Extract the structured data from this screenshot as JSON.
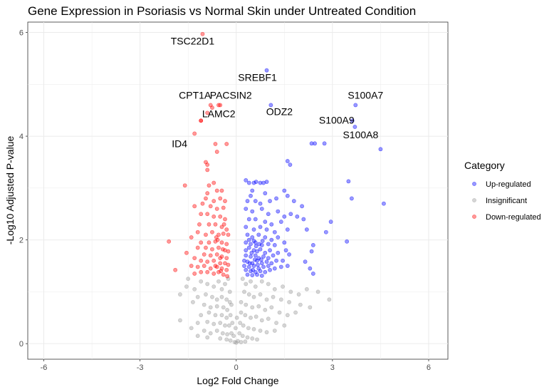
{
  "chart_data": {
    "type": "scatter",
    "title": "Gene Expression in Psoriasis vs Normal Skin under Untreated Condition",
    "xlabel": "Log2 Fold Change",
    "ylabel": "-Log10 Adjusted P-value",
    "xlim": [
      -6.5,
      6.6
    ],
    "ylim": [
      -0.3,
      6.2
    ],
    "x_ticks": [
      -6,
      -3,
      0,
      3,
      6
    ],
    "y_ticks": [
      0,
      2,
      4,
      6
    ],
    "grid": true,
    "legend": {
      "title": "Category",
      "placement": "right",
      "entries": [
        {
          "label": "Up-regulated",
          "color": "#0000ff"
        },
        {
          "label": "Insignificant",
          "color": "#999999"
        },
        {
          "label": "Down-regulated",
          "color": "#ff0000"
        }
      ]
    },
    "labeled_points": [
      {
        "gene": "TSC22D1",
        "x": -1.05,
        "y": 5.97,
        "category": "Down-regulated"
      },
      {
        "gene": "SREBF1",
        "x": 0.95,
        "y": 5.27,
        "category": "Up-regulated"
      },
      {
        "gene": "CPT1A",
        "x": -0.8,
        "y": 4.6,
        "category": "Down-regulated"
      },
      {
        "gene": "PACSIN2",
        "x": -0.5,
        "y": 4.6,
        "category": "Down-regulated"
      },
      {
        "gene": "LAMC2",
        "x": -1.1,
        "y": 4.3,
        "category": "Down-regulated"
      },
      {
        "gene": "ODZ2",
        "x": 1.08,
        "y": 4.6,
        "category": "Up-regulated"
      },
      {
        "gene": "S100A7",
        "x": 3.72,
        "y": 4.6,
        "category": "Up-regulated"
      },
      {
        "gene": "S100A9",
        "x": 3.62,
        "y": 4.3,
        "category": "Up-regulated"
      },
      {
        "gene": "S100A8",
        "x": 3.7,
        "y": 4.18,
        "category": "Up-regulated"
      },
      {
        "gene": "ID4",
        "x": -1.3,
        "y": 4.05,
        "category": "Down-regulated"
      }
    ],
    "up_regulated_points": [
      [
        2.35,
        3.86
      ],
      [
        2.45,
        3.86
      ],
      [
        2.75,
        3.86
      ],
      [
        4.5,
        3.75
      ],
      [
        1.6,
        3.52
      ],
      [
        1.68,
        3.45
      ],
      [
        0.3,
        3.15
      ],
      [
        0.4,
        3.1
      ],
      [
        0.55,
        3.1
      ],
      [
        0.62,
        3.12
      ],
      [
        0.75,
        3.1
      ],
      [
        0.85,
        3.1
      ],
      [
        0.95,
        3.12
      ],
      [
        3.5,
        3.13
      ],
      [
        0.5,
        2.95
      ],
      [
        0.9,
        2.9
      ],
      [
        1.5,
        2.95
      ],
      [
        1.6,
        2.85
      ],
      [
        0.45,
        2.85
      ],
      [
        0.35,
        2.75
      ],
      [
        0.6,
        2.75
      ],
      [
        0.75,
        2.7
      ],
      [
        1.05,
        2.75
      ],
      [
        1.25,
        2.8
      ],
      [
        1.8,
        2.75
      ],
      [
        3.6,
        2.8
      ],
      [
        4.6,
        2.7
      ],
      [
        2.05,
        2.65
      ],
      [
        0.3,
        2.6
      ],
      [
        0.5,
        2.55
      ],
      [
        0.8,
        2.6
      ],
      [
        1.0,
        2.5
      ],
      [
        1.3,
        2.55
      ],
      [
        1.5,
        2.45
      ],
      [
        1.7,
        2.5
      ],
      [
        1.9,
        2.45
      ],
      [
        0.4,
        2.4
      ],
      [
        0.6,
        2.4
      ],
      [
        0.9,
        2.35
      ],
      [
        1.1,
        2.3
      ],
      [
        1.4,
        2.35
      ],
      [
        2.1,
        2.4
      ],
      [
        2.95,
        2.35
      ],
      [
        0.3,
        2.25
      ],
      [
        0.55,
        2.2
      ],
      [
        0.75,
        2.25
      ],
      [
        0.95,
        2.2
      ],
      [
        1.2,
        2.15
      ],
      [
        1.6,
        2.2
      ],
      [
        2.2,
        2.2
      ],
      [
        2.8,
        2.15
      ],
      [
        0.35,
        2.1
      ],
      [
        0.5,
        2.05
      ],
      [
        0.7,
        2.1
      ],
      [
        0.9,
        2.05
      ],
      [
        1.1,
        2.0
      ],
      [
        1.3,
        2.05
      ],
      [
        0.3,
        1.95
      ],
      [
        0.45,
        1.92
      ],
      [
        0.6,
        1.95
      ],
      [
        0.8,
        1.9
      ],
      [
        1.0,
        1.92
      ],
      [
        1.2,
        1.9
      ],
      [
        1.5,
        1.95
      ],
      [
        3.45,
        1.97
      ],
      [
        2.4,
        1.9
      ],
      [
        0.3,
        1.8
      ],
      [
        0.4,
        1.85
      ],
      [
        0.55,
        1.8
      ],
      [
        0.65,
        1.78
      ],
      [
        0.75,
        1.82
      ],
      [
        0.9,
        1.75
      ],
      [
        1.05,
        1.8
      ],
      [
        1.3,
        1.75
      ],
      [
        1.55,
        1.8
      ],
      [
        1.65,
        1.72
      ],
      [
        2.35,
        1.78
      ],
      [
        0.3,
        1.7
      ],
      [
        0.45,
        1.68
      ],
      [
        0.6,
        1.7
      ],
      [
        0.7,
        1.65
      ],
      [
        0.85,
        1.68
      ],
      [
        1.0,
        1.65
      ],
      [
        1.15,
        1.7
      ],
      [
        1.45,
        1.6
      ],
      [
        0.25,
        1.6
      ],
      [
        0.35,
        1.58
      ],
      [
        0.5,
        1.55
      ],
      [
        0.65,
        1.6
      ],
      [
        0.8,
        1.55
      ],
      [
        0.95,
        1.58
      ],
      [
        1.1,
        1.55
      ],
      [
        1.25,
        1.6
      ],
      [
        2.15,
        1.58
      ],
      [
        0.25,
        1.5
      ],
      [
        0.4,
        1.48
      ],
      [
        0.55,
        1.5
      ],
      [
        0.7,
        1.45
      ],
      [
        0.85,
        1.48
      ],
      [
        1.0,
        1.5
      ],
      [
        1.2,
        1.45
      ],
      [
        1.4,
        1.48
      ],
      [
        1.6,
        1.5
      ],
      [
        2.3,
        1.45
      ],
      [
        0.3,
        1.42
      ],
      [
        0.45,
        1.4
      ],
      [
        0.6,
        1.38
      ],
      [
        0.75,
        1.4
      ],
      [
        0.9,
        1.38
      ],
      [
        1.05,
        1.42
      ],
      [
        0.35,
        1.33
      ],
      [
        0.5,
        1.32
      ],
      [
        0.65,
        1.33
      ],
      [
        0.8,
        1.31
      ],
      [
        2.4,
        1.35
      ],
      [
        0.4,
        2.0
      ],
      [
        0.55,
        1.98
      ],
      [
        0.62,
        1.88
      ],
      [
        0.72,
        1.92
      ],
      [
        0.82,
        1.98
      ],
      [
        0.48,
        1.75
      ],
      [
        0.58,
        1.62
      ],
      [
        0.52,
        1.42
      ],
      [
        0.42,
        1.55
      ],
      [
        0.67,
        1.52
      ],
      [
        0.78,
        1.62
      ]
    ],
    "down_regulated_points": [
      [
        -0.75,
        4.55
      ],
      [
        -0.55,
        4.6
      ],
      [
        -0.9,
        4.45
      ],
      [
        -1.1,
        4.3
      ],
      [
        -0.65,
        3.85
      ],
      [
        -0.3,
        3.85
      ],
      [
        -0.6,
        3.7
      ],
      [
        -0.9,
        3.45
      ],
      [
        -0.95,
        3.5
      ],
      [
        -0.9,
        3.35
      ],
      [
        -1.6,
        3.05
      ],
      [
        -0.7,
        3.1
      ],
      [
        -0.85,
        3.05
      ],
      [
        -0.6,
        2.95
      ],
      [
        -0.9,
        2.9
      ],
      [
        -0.45,
        2.95
      ],
      [
        -0.95,
        2.8
      ],
      [
        -0.7,
        2.75
      ],
      [
        -0.5,
        2.8
      ],
      [
        -0.35,
        2.75
      ],
      [
        -1.05,
        2.7
      ],
      [
        -0.8,
        2.65
      ],
      [
        -0.6,
        2.6
      ],
      [
        -0.4,
        2.62
      ],
      [
        -1.3,
        2.65
      ],
      [
        -1.1,
        2.5
      ],
      [
        -0.9,
        2.5
      ],
      [
        -0.7,
        2.45
      ],
      [
        -0.5,
        2.45
      ],
      [
        -0.35,
        2.4
      ],
      [
        -1.15,
        2.3
      ],
      [
        -0.85,
        2.3
      ],
      [
        -0.65,
        2.3
      ],
      [
        -0.45,
        2.25
      ],
      [
        -0.3,
        2.2
      ],
      [
        -1.2,
        2.15
      ],
      [
        -0.95,
        2.1
      ],
      [
        -0.75,
        2.15
      ],
      [
        -0.55,
        2.1
      ],
      [
        -0.4,
        2.12
      ],
      [
        -0.25,
        2.1
      ],
      [
        -2.1,
        1.97
      ],
      [
        -1.4,
        2.05
      ],
      [
        -1.1,
        1.95
      ],
      [
        -0.85,
        1.95
      ],
      [
        -0.65,
        1.97
      ],
      [
        -0.45,
        1.95
      ],
      [
        -0.3,
        1.92
      ],
      [
        -1.2,
        1.85
      ],
      [
        -0.95,
        1.85
      ],
      [
        -0.75,
        1.82
      ],
      [
        -0.55,
        1.85
      ],
      [
        -0.35,
        1.8
      ],
      [
        -0.25,
        1.78
      ],
      [
        -1.55,
        1.75
      ],
      [
        -1.0,
        1.72
      ],
      [
        -0.8,
        1.7
      ],
      [
        -0.6,
        1.72
      ],
      [
        -0.45,
        1.68
      ],
      [
        -0.3,
        1.65
      ],
      [
        -1.3,
        1.65
      ],
      [
        -1.1,
        1.6
      ],
      [
        -0.9,
        1.58
      ],
      [
        -0.7,
        1.6
      ],
      [
        -0.5,
        1.55
      ],
      [
        -0.35,
        1.55
      ],
      [
        -0.25,
        1.52
      ],
      [
        -1.4,
        1.5
      ],
      [
        -1.2,
        1.48
      ],
      [
        -1.0,
        1.5
      ],
      [
        -0.8,
        1.45
      ],
      [
        -0.6,
        1.48
      ],
      [
        -0.45,
        1.45
      ],
      [
        -0.3,
        1.42
      ],
      [
        -1.9,
        1.42
      ],
      [
        -1.1,
        1.38
      ],
      [
        -0.9,
        1.38
      ],
      [
        -0.7,
        1.35
      ],
      [
        -0.55,
        1.38
      ],
      [
        -0.4,
        1.33
      ],
      [
        -0.28,
        1.3
      ],
      [
        -1.3,
        1.35
      ],
      [
        -0.65,
        1.5
      ],
      [
        -0.5,
        1.65
      ],
      [
        -0.42,
        1.82
      ],
      [
        -0.58,
        2.0
      ],
      [
        -0.38,
        2.3
      ],
      [
        -0.62,
        2.05
      ],
      [
        -0.48,
        1.4
      ]
    ],
    "insignificant_points": [
      [
        -1.5,
        1.25
      ],
      [
        -1.55,
        1.1
      ],
      [
        -1.3,
        1.05
      ],
      [
        -1.1,
        1.2
      ],
      [
        -0.9,
        1.15
      ],
      [
        -0.7,
        1.1
      ],
      [
        -0.55,
        1.2
      ],
      [
        -0.45,
        1.05
      ],
      [
        -0.35,
        1.15
      ],
      [
        -0.25,
        1.25
      ],
      [
        -0.2,
        1.0
      ],
      [
        -1.75,
        0.95
      ],
      [
        -1.2,
        0.9
      ],
      [
        -0.95,
        0.95
      ],
      [
        -0.75,
        0.9
      ],
      [
        -0.6,
        0.85
      ],
      [
        -0.45,
        0.9
      ],
      [
        -0.3,
        0.85
      ],
      [
        -0.2,
        0.8
      ],
      [
        -1.35,
        0.8
      ],
      [
        -1.0,
        0.75
      ],
      [
        -0.8,
        0.7
      ],
      [
        -0.6,
        0.72
      ],
      [
        -0.4,
        0.7
      ],
      [
        -0.28,
        0.65
      ],
      [
        -0.15,
        0.75
      ],
      [
        -1.1,
        0.55
      ],
      [
        -0.85,
        0.6
      ],
      [
        -0.65,
        0.55
      ],
      [
        -0.45,
        0.55
      ],
      [
        -0.3,
        0.5
      ],
      [
        -0.18,
        0.55
      ],
      [
        -1.75,
        0.45
      ],
      [
        -1.2,
        0.4
      ],
      [
        -0.9,
        0.42
      ],
      [
        -0.7,
        0.38
      ],
      [
        -0.5,
        0.4
      ],
      [
        -0.35,
        0.35
      ],
      [
        -0.22,
        0.35
      ],
      [
        -0.12,
        0.4
      ],
      [
        -1.4,
        0.3
      ],
      [
        -1.0,
        0.25
      ],
      [
        -0.8,
        0.2
      ],
      [
        -0.6,
        0.25
      ],
      [
        -0.42,
        0.2
      ],
      [
        -0.28,
        0.18
      ],
      [
        -0.15,
        0.2
      ],
      [
        -0.08,
        0.15
      ],
      [
        -0.5,
        0.1
      ],
      [
        -0.3,
        0.08
      ],
      [
        -0.18,
        0.06
      ],
      [
        -0.05,
        0.03
      ],
      [
        -1.2,
        0.15
      ],
      [
        -0.9,
        0.12
      ],
      [
        0.2,
        1.25
      ],
      [
        0.3,
        1.15
      ],
      [
        0.45,
        1.2
      ],
      [
        0.6,
        1.1
      ],
      [
        0.8,
        1.2
      ],
      [
        1.0,
        1.15
      ],
      [
        1.2,
        1.05
      ],
      [
        1.45,
        1.1
      ],
      [
        1.7,
        1.0
      ],
      [
        1.95,
        0.95
      ],
      [
        2.2,
        1.05
      ],
      [
        2.55,
        1.0
      ],
      [
        0.25,
        1.0
      ],
      [
        0.4,
        0.95
      ],
      [
        0.55,
        0.9
      ],
      [
        0.75,
        0.95
      ],
      [
        0.95,
        0.85
      ],
      [
        1.15,
        0.9
      ],
      [
        1.4,
        0.85
      ],
      [
        1.65,
        0.8
      ],
      [
        2.0,
        0.75
      ],
      [
        0.15,
        0.8
      ],
      [
        0.3,
        0.75
      ],
      [
        0.5,
        0.7
      ],
      [
        0.7,
        0.72
      ],
      [
        0.9,
        0.65
      ],
      [
        1.1,
        0.7
      ],
      [
        1.35,
        0.6
      ],
      [
        1.6,
        0.55
      ],
      [
        0.15,
        0.6
      ],
      [
        0.28,
        0.55
      ],
      [
        0.45,
        0.5
      ],
      [
        0.62,
        0.52
      ],
      [
        0.8,
        0.45
      ],
      [
        1.0,
        0.48
      ],
      [
        1.25,
        0.4
      ],
      [
        0.12,
        0.4
      ],
      [
        0.22,
        0.35
      ],
      [
        0.38,
        0.3
      ],
      [
        0.55,
        0.28
      ],
      [
        0.75,
        0.25
      ],
      [
        0.95,
        0.22
      ],
      [
        0.1,
        0.2
      ],
      [
        0.2,
        0.15
      ],
      [
        0.35,
        0.12
      ],
      [
        0.5,
        0.1
      ],
      [
        0.65,
        0.08
      ],
      [
        0.05,
        0.05
      ],
      [
        0.15,
        0.03
      ],
      [
        0.28,
        0.04
      ],
      [
        2.9,
        0.85
      ],
      [
        2.3,
        0.7
      ],
      [
        1.85,
        0.6
      ],
      [
        1.5,
        0.35
      ],
      [
        1.2,
        0.25
      ],
      [
        0.0,
        0.02
      ],
      [
        -0.02,
        0.3
      ],
      [
        0.02,
        0.5
      ]
    ]
  }
}
